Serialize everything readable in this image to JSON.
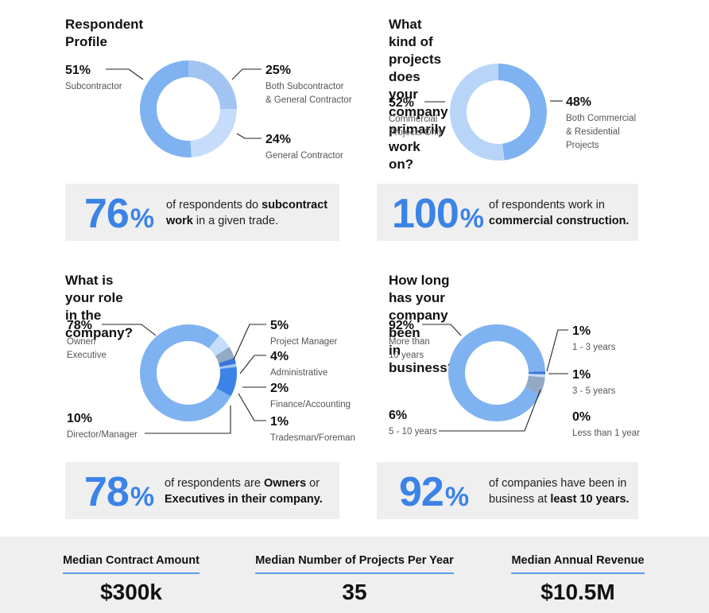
{
  "colors": {
    "blue_main": "#7fb2f0",
    "blue_light": "#b8d5f8",
    "blue_mid": "#a2c4f2",
    "blue_dark": "#3a76d6",
    "blue_bright": "#3b83e6",
    "gray_slice": "#93a9c4",
    "callout_bg": "#efefef",
    "accent": "#3b83e6"
  },
  "chart_data": [
    {
      "type": "pie",
      "title": "Respondent Profile",
      "slices": [
        {
          "pct": "51%",
          "value": 51,
          "label": [
            "Subcontractor"
          ],
          "color": "#7fb2f0"
        },
        {
          "pct": "25%",
          "value": 25,
          "label": [
            "Both Subcontractor",
            "& General Contractor"
          ],
          "color": "#a2c4f2"
        },
        {
          "pct": "24%",
          "value": 24,
          "label": [
            "General Contractor"
          ],
          "color": "#c5dcfa"
        }
      ],
      "callout": {
        "big": "76",
        "pct": "%",
        "text_pre": "of respondents do ",
        "text_bold": "subcontract work",
        "text_post": " in a given trade."
      }
    },
    {
      "type": "pie",
      "title": [
        "What kind of projects does your",
        "company primarily work on?"
      ],
      "slices": [
        {
          "pct": "48%",
          "value": 48,
          "label": [
            "Both Commercial",
            "& Residential",
            "Projects"
          ],
          "color": "#7fb2f0"
        },
        {
          "pct": "52%",
          "value": 52,
          "label": [
            "Commercial",
            "Projects Only"
          ],
          "color": "#b8d5f8"
        }
      ],
      "callout": {
        "big": "100",
        "pct": "%",
        "text_pre": "of respondents work in ",
        "text_bold": "commercial construction.",
        "text_post": ""
      }
    },
    {
      "type": "pie",
      "title": "What is your role in the company?",
      "slices": [
        {
          "pct": "78%",
          "value": 78,
          "label": [
            "Owner/",
            "Executive"
          ],
          "color": "#7fb2f0"
        },
        {
          "pct": "5%",
          "value": 5,
          "label": [
            "Project Manager"
          ],
          "color": "#c5dcfa"
        },
        {
          "pct": "4%",
          "value": 4,
          "label": [
            "Administrative"
          ],
          "color": "#93a9c4"
        },
        {
          "pct": "2%",
          "value": 2,
          "label": [
            "Finance/Accounting"
          ],
          "color": "#3a76d6"
        },
        {
          "pct": "1%",
          "value": 1,
          "label": [
            "Tradesman/Foreman"
          ],
          "color": "#a2c4f2"
        },
        {
          "pct": "10%",
          "value": 10,
          "label": [
            "Director/Manager"
          ],
          "color": "#3b83e6"
        }
      ],
      "callout": {
        "big": "78",
        "pct": "%",
        "text_pre": "of respondents are ",
        "text_bold": "Owners",
        "text_mid": " or ",
        "text_bold2": "Executives in their company.",
        "text_post": ""
      }
    },
    {
      "type": "pie",
      "title": [
        "How long has your company been",
        "in business?"
      ],
      "slices": [
        {
          "pct": "92%",
          "value": 92,
          "label": [
            "More than",
            "10 years"
          ],
          "color": "#7fb2f0"
        },
        {
          "pct": "1%",
          "value": 1,
          "label": [
            "1 - 3 years"
          ],
          "color": "#3a76d6"
        },
        {
          "pct": "1%",
          "value": 1,
          "label": [
            "3 - 5 years"
          ],
          "color": "#c5dcfa"
        },
        {
          "pct": "6%",
          "value": 6,
          "label": [
            "5 - 10 years"
          ],
          "color": "#93a9c4"
        },
        {
          "pct": "0%",
          "value": 0,
          "label": [
            "Less than 1 year"
          ],
          "color": "#7fb2f0"
        }
      ],
      "callout": {
        "big": "92",
        "pct": "%",
        "text_pre": "of companies have been in business at ",
        "text_bold": "least 10 years.",
        "text_post": ""
      }
    }
  ],
  "footer": {
    "metrics": [
      {
        "label": "Median Contract Amount",
        "value": "$300k"
      },
      {
        "label": "Median Number of Projects Per Year",
        "value": "35"
      },
      {
        "label": "Median Annual Revenue",
        "value": "$10.5M"
      }
    ]
  }
}
